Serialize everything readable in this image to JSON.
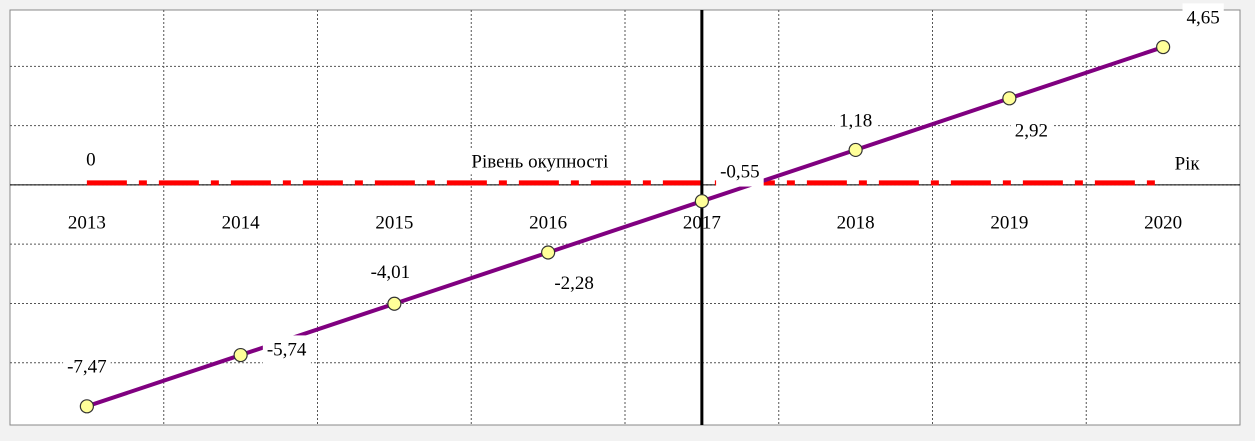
{
  "chart_data": {
    "type": "line",
    "categories": [
      "2013",
      "2014",
      "2015",
      "2016",
      "2017",
      "2018",
      "2019",
      "2020"
    ],
    "series": [
      {
        "color": "#800080",
        "marker_color": "#ffff99",
        "values": [
          -7.47,
          -5.74,
          -4.01,
          -2.28,
          -0.55,
          1.18,
          2.92,
          4.65
        ],
        "value_labels": [
          "-7,47",
          "-5,74",
          "-4,01",
          "-2,28",
          "-0,55",
          "1,18",
          "2,92",
          "4,65"
        ]
      }
    ],
    "ylim": [
      -8.1,
      5.9
    ],
    "yticks": [
      -6,
      -4,
      -2,
      0,
      2,
      4
    ],
    "grid": true,
    "x_label": "Рік",
    "y_axis_crosses_at": "2017",
    "reference_line": {
      "value": 0,
      "label": "Рівень окупності",
      "color": "#ff0000"
    }
  }
}
